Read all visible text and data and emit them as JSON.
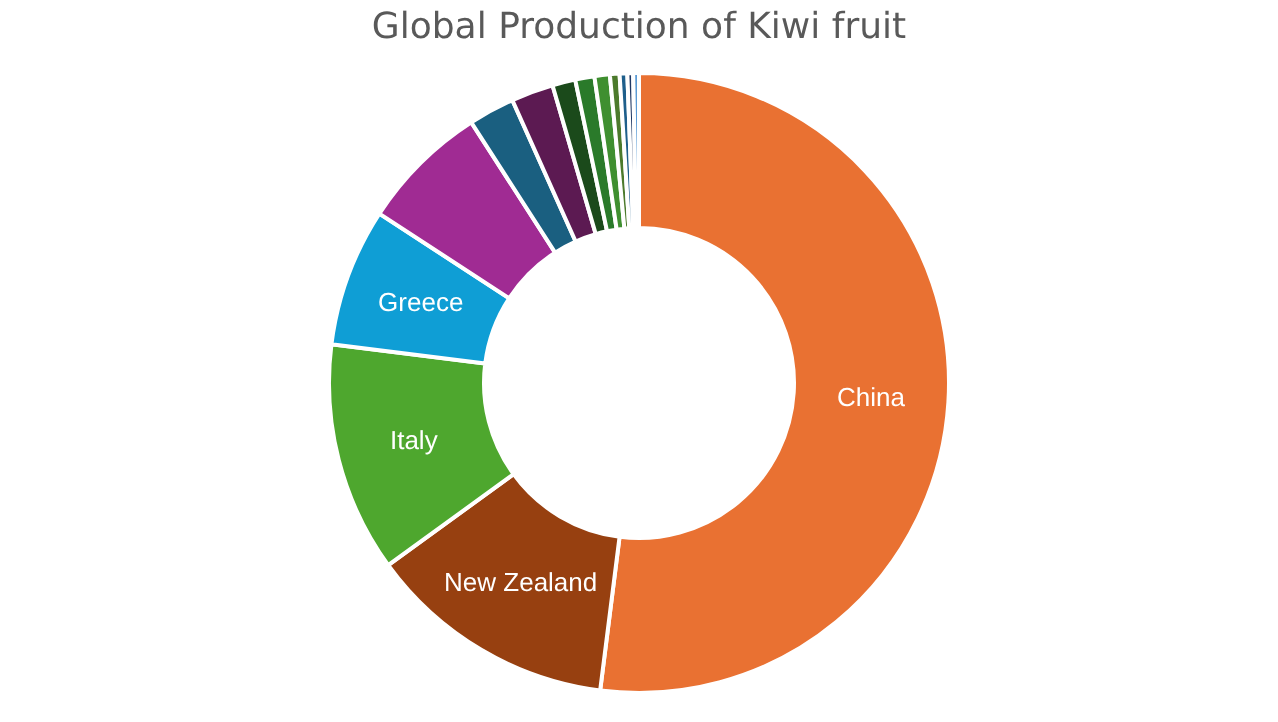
{
  "chart_data": {
    "type": "donut",
    "title": "Global Production of Kiwi fruit",
    "categories": [
      "China",
      "New Zealand",
      "Italy",
      "Greece",
      null,
      null,
      null,
      null,
      null,
      null,
      null,
      null,
      null,
      null
    ],
    "values": [
      52,
      13,
      12,
      7.2,
      6.7,
      2.4,
      2.2,
      1.2,
      1.0,
      0.8,
      0.5,
      0.4,
      0.3,
      0.3
    ],
    "colors": [
      "#e97132",
      "#974010",
      "#4ea72e",
      "#0f9ed5",
      "#a02b93",
      "#1a5f80",
      "#5c1a52",
      "#1b4a1b",
      "#2a7a2a",
      "#3f8f30",
      "#4c7a2c",
      "#1f5f8b",
      "#203864",
      "#5b9bd5"
    ],
    "legend": false
  }
}
